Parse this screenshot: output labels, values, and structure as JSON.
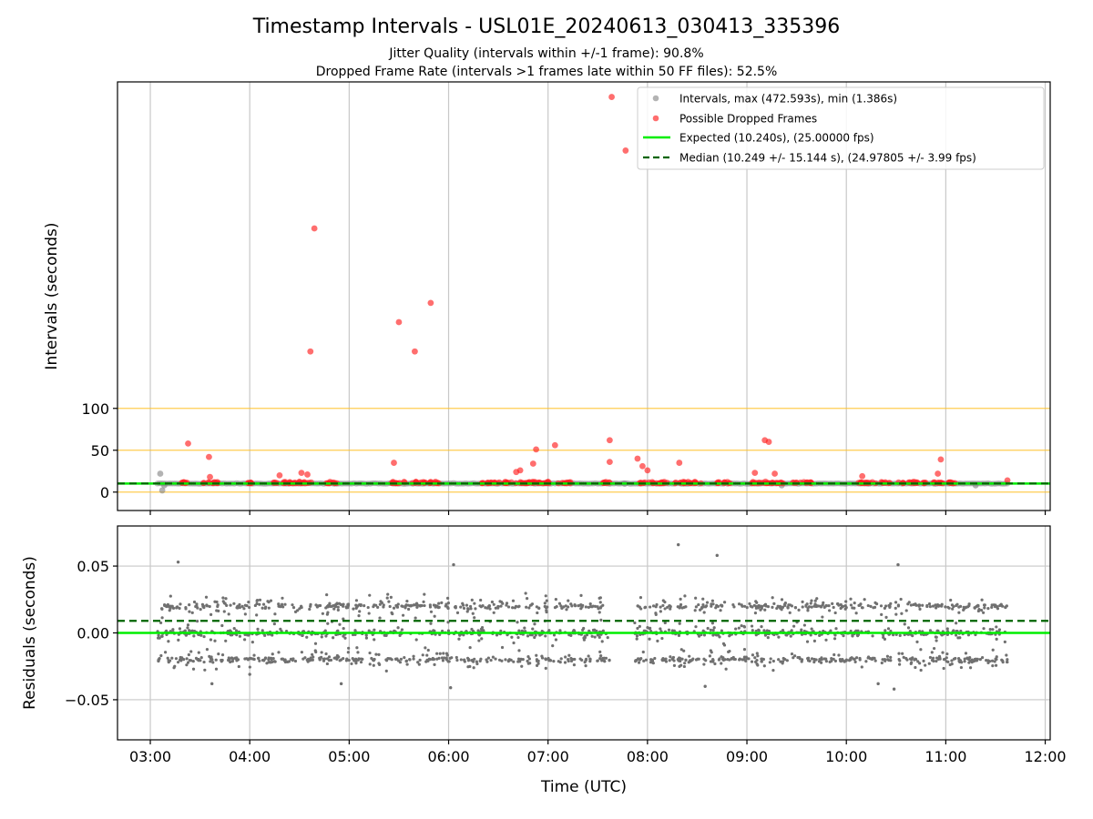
{
  "title": "Timestamp Intervals - USL01E_20240613_030413_335396",
  "subtitle_1": "Jitter Quality (intervals within +/-1 frame): 90.8%",
  "subtitle_2": "Dropped Frame Rate (intervals >1 frames late within 50 FF files): 52.5%",
  "colors": {
    "intervals": "#808080",
    "dropped": "#ff2020",
    "expected": "#00ee00",
    "median": "#006400",
    "threshold": "#ffc125",
    "grid": "#c8c8c8",
    "residual": "#707070"
  },
  "chart_data": [
    {
      "type": "scatter",
      "ylabel": "Intervals (seconds)",
      "xlabel": "",
      "x_unit": "hours UTC",
      "xlim": [
        2.67,
        12.05
      ],
      "ylim": [
        -22,
        490
      ],
      "yticks": [
        0,
        50,
        100
      ],
      "ytick_labels": [
        "0",
        "50",
        "100"
      ],
      "xticks": [
        3,
        4,
        5,
        6,
        7,
        8,
        9,
        10,
        11,
        12
      ],
      "threshold_lines": [
        0,
        50,
        100
      ],
      "grid": true,
      "legend_position": "upper right",
      "legend": [
        "Intervals, max (472.593s), min (1.386s)",
        "Possible Dropped Frames",
        "Expected (10.240s), (25.00000 fps)",
        "Median (10.249 +/- 15.144 s), (24.97805 +/- 3.99 fps)"
      ],
      "expected": 10.24,
      "median": 10.249,
      "intervals_range": {
        "start": 3.07,
        "end": 11.62,
        "value": 10.24
      },
      "intervals_outliers": [
        {
          "x": 3.1,
          "y": 22
        },
        {
          "x": 3.12,
          "y": 2
        },
        {
          "x": 3.14,
          "y": 8
        },
        {
          "x": 7.77,
          "y": 10
        },
        {
          "x": 9.35,
          "y": 8
        },
        {
          "x": 11.3,
          "y": 8
        }
      ],
      "dropped_frames": [
        {
          "x": 3.38,
          "y": 58
        },
        {
          "x": 3.59,
          "y": 42
        },
        {
          "x": 3.6,
          "y": 18
        },
        {
          "x": 4.3,
          "y": 20
        },
        {
          "x": 4.52,
          "y": 23
        },
        {
          "x": 4.58,
          "y": 21
        },
        {
          "x": 4.61,
          "y": 168
        },
        {
          "x": 4.65,
          "y": 315
        },
        {
          "x": 5.45,
          "y": 35
        },
        {
          "x": 5.5,
          "y": 203
        },
        {
          "x": 5.66,
          "y": 168
        },
        {
          "x": 5.82,
          "y": 226
        },
        {
          "x": 6.68,
          "y": 24
        },
        {
          "x": 6.72,
          "y": 26
        },
        {
          "x": 6.85,
          "y": 34
        },
        {
          "x": 6.88,
          "y": 51
        },
        {
          "x": 7.07,
          "y": 56
        },
        {
          "x": 7.62,
          "y": 62
        },
        {
          "x": 7.62,
          "y": 36
        },
        {
          "x": 7.64,
          "y": 472
        },
        {
          "x": 7.78,
          "y": 408
        },
        {
          "x": 7.9,
          "y": 40
        },
        {
          "x": 7.95,
          "y": 31
        },
        {
          "x": 8.0,
          "y": 26
        },
        {
          "x": 8.32,
          "y": 35
        },
        {
          "x": 9.08,
          "y": 23
        },
        {
          "x": 9.18,
          "y": 62
        },
        {
          "x": 9.22,
          "y": 60
        },
        {
          "x": 9.28,
          "y": 22
        },
        {
          "x": 10.16,
          "y": 19
        },
        {
          "x": 10.92,
          "y": 22
        },
        {
          "x": 10.95,
          "y": 39
        },
        {
          "x": 11.62,
          "y": 14
        }
      ],
      "dropped_clusters": [
        [
          3.3,
          3.38
        ],
        [
          3.52,
          3.68
        ],
        [
          3.98,
          4.02
        ],
        [
          4.2,
          4.62
        ],
        [
          4.75,
          4.88
        ],
        [
          5.42,
          5.57
        ],
        [
          5.62,
          5.92
        ],
        [
          6.32,
          7.25
        ],
        [
          7.55,
          7.62
        ],
        [
          7.88,
          8.2
        ],
        [
          8.25,
          8.55
        ],
        [
          8.7,
          8.85
        ],
        [
          9.02,
          9.38
        ],
        [
          9.45,
          9.65
        ],
        [
          10.12,
          10.45
        ],
        [
          10.52,
          10.72
        ],
        [
          10.75,
          11.1
        ]
      ]
    },
    {
      "type": "scatter",
      "ylabel": "Residuals (seconds)",
      "xlabel": "Time (UTC)",
      "xlim": [
        2.67,
        12.05
      ],
      "ylim": [
        -0.08,
        0.08
      ],
      "yticks": [
        -0.05,
        0.0,
        0.05
      ],
      "ytick_labels": [
        "−0.05",
        "0.00",
        "0.05"
      ],
      "xticks": [
        3,
        4,
        5,
        6,
        7,
        8,
        9,
        10,
        11,
        12
      ],
      "xtick_labels": [
        "03:00",
        "04:00",
        "05:00",
        "06:00",
        "07:00",
        "08:00",
        "09:00",
        "10:00",
        "11:00",
        "12:00"
      ],
      "grid": true,
      "expected_residual": 0.0,
      "median_residual": 0.009,
      "residual_bands": [
        0.02,
        0.0,
        -0.02
      ],
      "residual_segments": [
        [
          3.07,
          7.62
        ],
        [
          7.87,
          11.62
        ]
      ],
      "residual_extremes": [
        {
          "x": 3.28,
          "y": 0.053
        },
        {
          "x": 3.62,
          "y": -0.038
        },
        {
          "x": 4.0,
          "y": -0.031
        },
        {
          "x": 4.92,
          "y": -0.038
        },
        {
          "x": 6.05,
          "y": 0.051
        },
        {
          "x": 6.02,
          "y": -0.041
        },
        {
          "x": 8.31,
          "y": 0.066
        },
        {
          "x": 8.7,
          "y": 0.058
        },
        {
          "x": 8.58,
          "y": -0.04
        },
        {
          "x": 10.32,
          "y": -0.038
        },
        {
          "x": 10.48,
          "y": -0.042
        },
        {
          "x": 10.52,
          "y": 0.051
        }
      ]
    }
  ]
}
